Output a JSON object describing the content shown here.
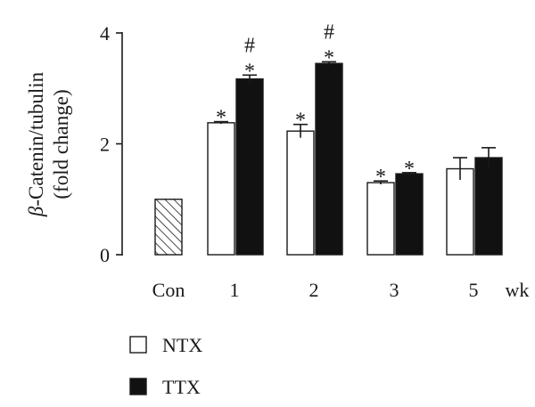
{
  "chart_data": {
    "type": "bar",
    "ylabel_line1_symbol": "β",
    "ylabel_line1_text": "-Catenin/tubulin",
    "ylabel_line2": "(fold change)",
    "x_unit": "wk",
    "ylim": [
      0,
      4
    ],
    "yticks": [
      "0",
      "2",
      "4"
    ],
    "categories": [
      "Con",
      "1",
      "2",
      "3",
      "5"
    ],
    "control": {
      "label": "Con",
      "value": 1.0,
      "pattern": "hatched"
    },
    "series": [
      {
        "name": "NTX",
        "fill": "#ffffff",
        "values": [
          null,
          2.38,
          2.23,
          1.3,
          1.55
        ],
        "errors": [
          null,
          0.02,
          0.12,
          0.03,
          0.2
        ],
        "sig": [
          null,
          "*",
          "*",
          "*",
          null
        ]
      },
      {
        "name": "TTX",
        "fill": "#111111",
        "values": [
          null,
          3.17,
          3.45,
          1.46,
          1.75
        ],
        "errors": [
          null,
          0.07,
          0.03,
          0.02,
          0.18
        ],
        "sig": [
          null,
          "*#",
          "*#",
          "*",
          null
        ]
      }
    ],
    "grid": false,
    "legend_position": "bottom-left"
  },
  "colors": {
    "axis": "#1a1a1a",
    "ntx_fill": "#ffffff",
    "ttx_fill": "#111111"
  }
}
